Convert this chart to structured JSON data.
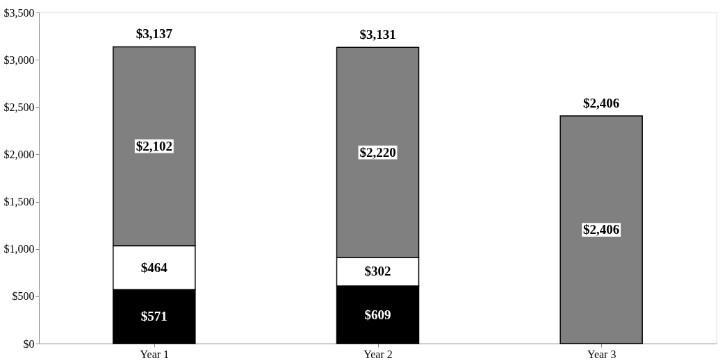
{
  "chart_data": {
    "type": "bar",
    "stacked": true,
    "categories": [
      "Year 1",
      "Year 2",
      "Year 3"
    ],
    "series": [
      {
        "color": "#000000",
        "values": [
          571,
          609,
          null
        ],
        "value_labels": [
          "$571",
          "$609",
          null
        ]
      },
      {
        "color": "#ffffff",
        "values": [
          464,
          302,
          null
        ],
        "value_labels": [
          "$464",
          "$302",
          null
        ]
      },
      {
        "color": "#808080",
        "values": [
          2102,
          2220,
          2406
        ],
        "value_labels": [
          "$2,102",
          "$2,220",
          "$2,406"
        ]
      }
    ],
    "totals": [
      "$3,137",
      "$3,131",
      "$2,406"
    ],
    "ylim": [
      0,
      3500
    ],
    "yticks": [
      {
        "value": 0,
        "label": "$0"
      },
      {
        "value": 500,
        "label": "$500"
      },
      {
        "value": 1000,
        "label": "$1,000"
      },
      {
        "value": 1500,
        "label": "$1,500"
      },
      {
        "value": 2000,
        "label": "$2,000"
      },
      {
        "value": 2500,
        "label": "$2,500"
      },
      {
        "value": 3000,
        "label": "$3,000"
      },
      {
        "value": 3500,
        "label": "$3,500"
      }
    ],
    "grid": false
  }
}
